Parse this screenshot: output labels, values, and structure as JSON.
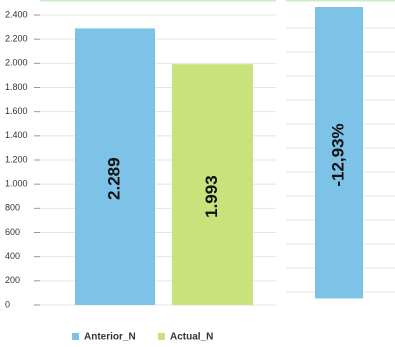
{
  "chart_data": [
    {
      "type": "bar",
      "categories": [
        null
      ],
      "series": [
        {
          "name": "Anterior_N",
          "color": "#7dc3e8",
          "values": [
            2289
          ],
          "value_labels": [
            "2.289"
          ]
        },
        {
          "name": "Actual_N",
          "color": "#c9e27c",
          "values": [
            1993
          ],
          "value_labels": [
            "1.993"
          ]
        }
      ],
      "ylim": [
        0,
        2400
      ],
      "yticks": [
        0,
        200,
        400,
        600,
        800,
        {
          "value": 1000,
          "label": "1.000"
        },
        {
          "value": 1200,
          "label": "1.200"
        },
        {
          "value": 1400,
          "label": "1.400"
        },
        {
          "value": 1600,
          "label": "1.600"
        },
        {
          "value": 1800,
          "label": "1.800"
        },
        {
          "value": 2000,
          "label": "2.000"
        },
        {
          "value": 2200,
          "label": "2.200"
        },
        {
          "value": 2400,
          "label": "2.400"
        }
      ],
      "grid": true
    },
    {
      "type": "bar",
      "categories": [
        null
      ],
      "values": [
        -12.93
      ],
      "value_labels": [
        "-12,93%"
      ],
      "color": "#7dc3e8",
      "ylim": [
        -13,
        0
      ]
    }
  ]
}
